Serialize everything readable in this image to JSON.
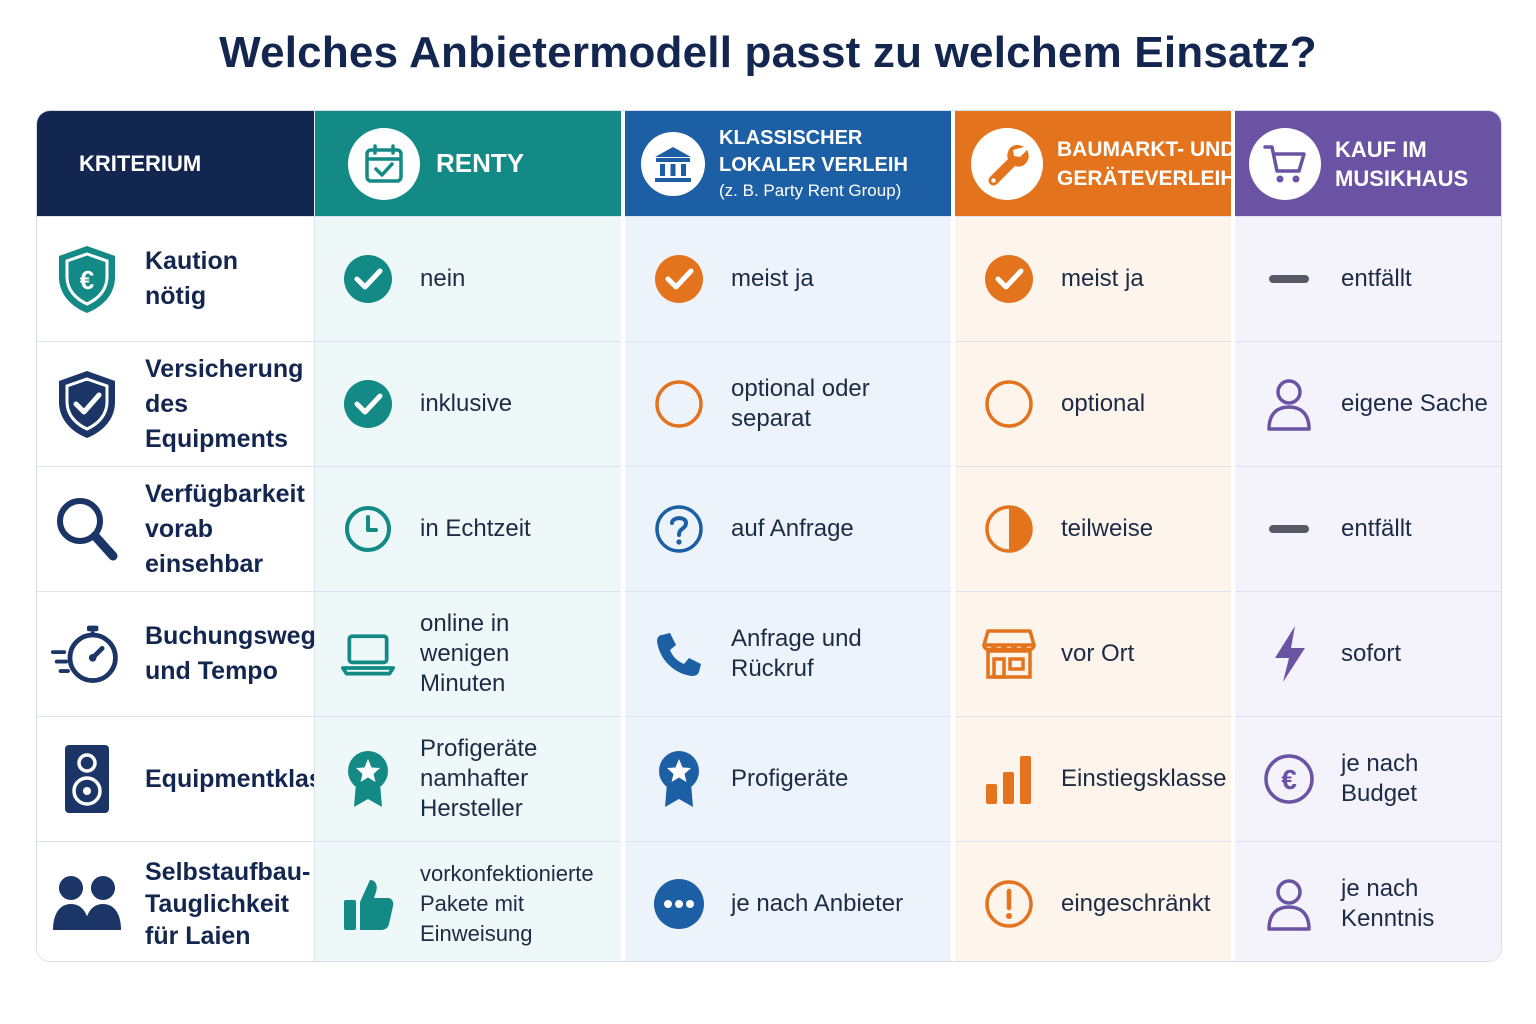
{
  "title": "Welches Anbietermodell passt zu welchem Einsatz?",
  "colors": {
    "navy": "#13264f",
    "teal": "#138a86",
    "blue": "#1c5fa4",
    "orange": "#e3731c",
    "purple": "#6b53a3"
  },
  "columns": {
    "criterion": {
      "label": "KRITERIUM"
    },
    "renty": {
      "label": "RENTY",
      "icon": "calendar-check-icon"
    },
    "local": {
      "label": "KLASSISCHER LOKALER VERLEIH",
      "sublabel": "(z. B. Party Rent Group)",
      "icon": "bank-building-icon"
    },
    "hardware": {
      "label": "BAUMARKT- UND GERÄTEVERLEIH",
      "icon": "wrench-icon"
    },
    "music": {
      "label": "KAUF IM MUSIKHAUS",
      "icon": "shopping-cart-icon"
    }
  },
  "rows": [
    {
      "criterion": "Kaution nötig",
      "criterion_icon": "euro-shield-icon",
      "renty": "nein",
      "local": "meist ja",
      "hardware": "meist ja",
      "music": "entfällt"
    },
    {
      "criterion": "Versicherung des Equipments",
      "criterion_icon": "shield-check-icon",
      "renty": "inklusive",
      "local": "optional oder separat",
      "hardware": "optional",
      "music": "eigene Sache"
    },
    {
      "criterion": "Verfügbarkeit vorab einsehbar",
      "criterion_icon": "magnifier-icon",
      "renty": "in Echtzeit",
      "local": "auf Anfrage",
      "hardware": "teilweise",
      "music": "entfällt"
    },
    {
      "criterion": "Buchungsweg und Tempo",
      "criterion_icon": "stopwatch-icon",
      "renty": "online in wenigen Minuten",
      "local": "Anfrage und Rückruf",
      "hardware": "vor Ort",
      "music": "sofort"
    },
    {
      "criterion": "Equipmentklasse",
      "criterion_icon": "speaker-icon",
      "renty": "Profigeräte namhafter Hersteller",
      "local": "Profigeräte",
      "hardware": "Einstiegsklasse",
      "music": "je nach Budget"
    },
    {
      "criterion": "Selbstaufbau-Tauglichkeit für Laien",
      "criterion_icon": "people-icon",
      "renty": "vorkonfektionierte Pakete mit Einweisung",
      "local": "je nach Anbieter",
      "hardware": "eingeschränkt",
      "music": "je nach Kenntnis"
    }
  ]
}
